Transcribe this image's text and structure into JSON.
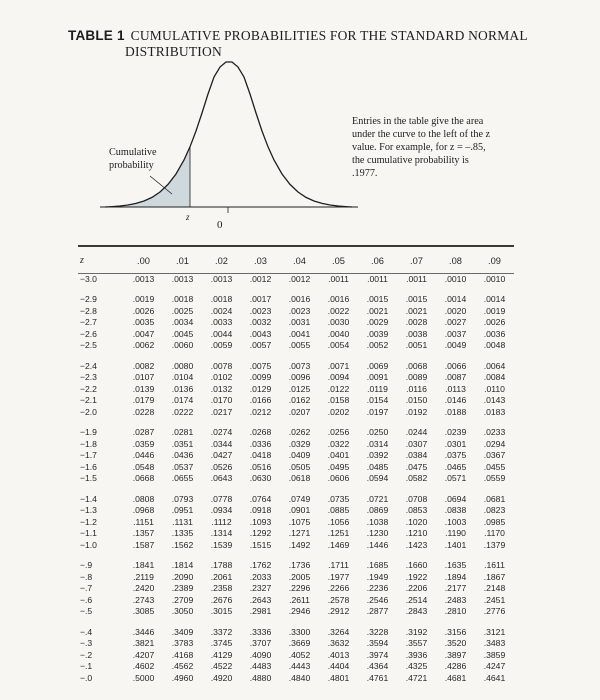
{
  "title": {
    "number": "TABLE 1",
    "line1": "CUMULATIVE PROBABILITIES FOR THE STANDARD NORMAL",
    "line2": "DISTRIBUTION"
  },
  "figure": {
    "cumulative_label": "Cumulative probability",
    "z_label": "z",
    "zero_label": "0",
    "note": "Entries in the table give the area under the curve to the left of the z value. For example, for z = –.85, the cumulative probability is .1977."
  },
  "table": {
    "z_header": "z",
    "columns": [
      ".00",
      ".01",
      ".02",
      ".03",
      ".04",
      ".05",
      ".06",
      ".07",
      ".08",
      ".09"
    ],
    "groups": [
      [
        {
          "z": "−3.0",
          "v": [
            ".0013",
            ".0013",
            ".0013",
            ".0012",
            ".0012",
            ".0011",
            ".0011",
            ".0011",
            ".0010",
            ".0010"
          ]
        }
      ],
      [
        {
          "z": "−2.9",
          "v": [
            ".0019",
            ".0018",
            ".0018",
            ".0017",
            ".0016",
            ".0016",
            ".0015",
            ".0015",
            ".0014",
            ".0014"
          ]
        },
        {
          "z": "−2.8",
          "v": [
            ".0026",
            ".0025",
            ".0024",
            ".0023",
            ".0023",
            ".0022",
            ".0021",
            ".0021",
            ".0020",
            ".0019"
          ]
        },
        {
          "z": "−2.7",
          "v": [
            ".0035",
            ".0034",
            ".0033",
            ".0032",
            ".0031",
            ".0030",
            ".0029",
            ".0028",
            ".0027",
            ".0026"
          ]
        },
        {
          "z": "−2.6",
          "v": [
            ".0047",
            ".0045",
            ".0044",
            ".0043",
            ".0041",
            ".0040",
            ".0039",
            ".0038",
            ".0037",
            ".0036"
          ]
        },
        {
          "z": "−2.5",
          "v": [
            ".0062",
            ".0060",
            ".0059",
            ".0057",
            ".0055",
            ".0054",
            ".0052",
            ".0051",
            ".0049",
            ".0048"
          ]
        }
      ],
      [
        {
          "z": "−2.4",
          "v": [
            ".0082",
            ".0080",
            ".0078",
            ".0075",
            ".0073",
            ".0071",
            ".0069",
            ".0068",
            ".0066",
            ".0064"
          ]
        },
        {
          "z": "−2.3",
          "v": [
            ".0107",
            ".0104",
            ".0102",
            ".0099",
            ".0096",
            ".0094",
            ".0091",
            ".0089",
            ".0087",
            ".0084"
          ]
        },
        {
          "z": "−2.2",
          "v": [
            ".0139",
            ".0136",
            ".0132",
            ".0129",
            ".0125",
            ".0122",
            ".0119",
            ".0116",
            ".0113",
            ".0110"
          ]
        },
        {
          "z": "−2.1",
          "v": [
            ".0179",
            ".0174",
            ".0170",
            ".0166",
            ".0162",
            ".0158",
            ".0154",
            ".0150",
            ".0146",
            ".0143"
          ]
        },
        {
          "z": "−2.0",
          "v": [
            ".0228",
            ".0222",
            ".0217",
            ".0212",
            ".0207",
            ".0202",
            ".0197",
            ".0192",
            ".0188",
            ".0183"
          ]
        }
      ],
      [
        {
          "z": "−1.9",
          "v": [
            ".0287",
            ".0281",
            ".0274",
            ".0268",
            ".0262",
            ".0256",
            ".0250",
            ".0244",
            ".0239",
            ".0233"
          ]
        },
        {
          "z": "−1.8",
          "v": [
            ".0359",
            ".0351",
            ".0344",
            ".0336",
            ".0329",
            ".0322",
            ".0314",
            ".0307",
            ".0301",
            ".0294"
          ]
        },
        {
          "z": "−1.7",
          "v": [
            ".0446",
            ".0436",
            ".0427",
            ".0418",
            ".0409",
            ".0401",
            ".0392",
            ".0384",
            ".0375",
            ".0367"
          ]
        },
        {
          "z": "−1.6",
          "v": [
            ".0548",
            ".0537",
            ".0526",
            ".0516",
            ".0505",
            ".0495",
            ".0485",
            ".0475",
            ".0465",
            ".0455"
          ]
        },
        {
          "z": "−1.5",
          "v": [
            ".0668",
            ".0655",
            ".0643",
            ".0630",
            ".0618",
            ".0606",
            ".0594",
            ".0582",
            ".0571",
            ".0559"
          ]
        }
      ],
      [
        {
          "z": "−1.4",
          "v": [
            ".0808",
            ".0793",
            ".0778",
            ".0764",
            ".0749",
            ".0735",
            ".0721",
            ".0708",
            ".0694",
            ".0681"
          ]
        },
        {
          "z": "−1.3",
          "v": [
            ".0968",
            ".0951",
            ".0934",
            ".0918",
            ".0901",
            ".0885",
            ".0869",
            ".0853",
            ".0838",
            ".0823"
          ]
        },
        {
          "z": "−1.2",
          "v": [
            ".1151",
            ".1131",
            ".1112",
            ".1093",
            ".1075",
            ".1056",
            ".1038",
            ".1020",
            ".1003",
            ".0985"
          ]
        },
        {
          "z": "−1.1",
          "v": [
            ".1357",
            ".1335",
            ".1314",
            ".1292",
            ".1271",
            ".1251",
            ".1230",
            ".1210",
            ".1190",
            ".1170"
          ]
        },
        {
          "z": "−1.0",
          "v": [
            ".1587",
            ".1562",
            ".1539",
            ".1515",
            ".1492",
            ".1469",
            ".1446",
            ".1423",
            ".1401",
            ".1379"
          ]
        }
      ],
      [
        {
          "z": "−.9",
          "v": [
            ".1841",
            ".1814",
            ".1788",
            ".1762",
            ".1736",
            ".1711",
            ".1685",
            ".1660",
            ".1635",
            ".1611"
          ]
        },
        {
          "z": "−.8",
          "v": [
            ".2119",
            ".2090",
            ".2061",
            ".2033",
            ".2005",
            ".1977",
            ".1949",
            ".1922",
            ".1894",
            ".1867"
          ]
        },
        {
          "z": "−.7",
          "v": [
            ".2420",
            ".2389",
            ".2358",
            ".2327",
            ".2296",
            ".2266",
            ".2236",
            ".2206",
            ".2177",
            ".2148"
          ]
        },
        {
          "z": "−.6",
          "v": [
            ".2743",
            ".2709",
            ".2676",
            ".2643",
            ".2611",
            ".2578",
            ".2546",
            ".2514",
            ".2483",
            ".2451"
          ]
        },
        {
          "z": "−.5",
          "v": [
            ".3085",
            ".3050",
            ".3015",
            ".2981",
            ".2946",
            ".2912",
            ".2877",
            ".2843",
            ".2810",
            ".2776"
          ]
        }
      ],
      [
        {
          "z": "−.4",
          "v": [
            ".3446",
            ".3409",
            ".3372",
            ".3336",
            ".3300",
            ".3264",
            ".3228",
            ".3192",
            ".3156",
            ".3121"
          ]
        },
        {
          "z": "−.3",
          "v": [
            ".3821",
            ".3783",
            ".3745",
            ".3707",
            ".3669",
            ".3632",
            ".3594",
            ".3557",
            ".3520",
            ".3483"
          ]
        },
        {
          "z": "−.2",
          "v": [
            ".4207",
            ".4168",
            ".4129",
            ".4090",
            ".4052",
            ".4013",
            ".3974",
            ".3936",
            ".3897",
            ".3859"
          ]
        },
        {
          "z": "−.1",
          "v": [
            ".4602",
            ".4562",
            ".4522",
            ".4483",
            ".4443",
            ".4404",
            ".4364",
            ".4325",
            ".4286",
            ".4247"
          ]
        },
        {
          "z": "−.0",
          "v": [
            ".5000",
            ".4960",
            ".4920",
            ".4880",
            ".4840",
            ".4801",
            ".4761",
            ".4721",
            ".4681",
            ".4641"
          ]
        }
      ]
    ]
  }
}
